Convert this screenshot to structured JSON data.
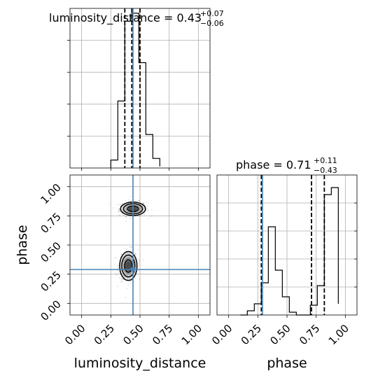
{
  "chart_data": [
    {
      "panel": "luminosity_distance-1d",
      "type": "bar",
      "title": "luminosity_distance = 0.43",
      "title_sup": "+0.07",
      "title_sub": "−0.06",
      "xlim": [
        -0.1,
        1.1
      ],
      "ylim": [
        0,
        1.0
      ],
      "bin_edges": [
        0.25,
        0.31,
        0.37,
        0.43,
        0.49,
        0.55,
        0.61,
        0.67
      ],
      "counts": [
        0.05,
        0.42,
        0.92,
        0.97,
        0.66,
        0.21,
        0.06,
        0.01
      ],
      "quantiles": [
        0.37,
        0.43,
        0.5
      ],
      "truth": 0.44,
      "xticks": [
        0.0,
        0.25,
        0.5,
        0.75,
        1.0
      ]
    },
    {
      "panel": "phase-1d",
      "type": "bar",
      "title": "phase = 0.71",
      "title_sup": "+0.11",
      "title_sub": "−0.43",
      "xlim": [
        -0.1,
        1.1
      ],
      "ylim": [
        0,
        1.0
      ],
      "bin_edges": [
        0.1,
        0.16,
        0.22,
        0.28,
        0.34,
        0.4,
        0.46,
        0.52,
        0.58,
        0.64,
        0.7,
        0.76,
        0.82,
        0.88,
        0.94
      ],
      "counts": [
        0.0,
        0.03,
        0.08,
        0.23,
        0.63,
        0.32,
        0.13,
        0.02,
        0.0,
        0.0,
        0.07,
        0.21,
        0.86,
        0.91,
        0.08
      ],
      "quantiles": [
        0.28,
        0.71,
        0.82
      ],
      "truth": 0.29,
      "xticks": [
        0.0,
        0.25,
        0.5,
        0.75,
        1.0
      ],
      "xticklabels": [
        "0.00",
        "0.25",
        "0.50",
        "0.75",
        "1.00"
      ],
      "xlabel": "phase"
    },
    {
      "panel": "luminosity_distance-phase-2d",
      "type": "scatter",
      "xlabel": "luminosity_distance",
      "ylabel": "phase",
      "xlim": [
        -0.1,
        1.1
      ],
      "ylim": [
        -0.1,
        1.1
      ],
      "xticks": [
        0.0,
        0.25,
        0.5,
        0.75,
        1.0
      ],
      "xticklabels": [
        "0.00",
        "0.25",
        "0.50",
        "0.75",
        "1.00"
      ],
      "yticks": [
        0.0,
        0.25,
        0.5,
        0.75,
        1.0
      ],
      "yticklabels": [
        "0.00",
        "0.25",
        "0.50",
        "0.75",
        "1.00"
      ],
      "truth": [
        0.44,
        0.29
      ],
      "clusters": [
        {
          "center": [
            0.44,
            0.81
          ],
          "spread": [
            0.065,
            0.035
          ]
        },
        {
          "center": [
            0.4,
            0.32
          ],
          "spread": [
            0.045,
            0.075
          ]
        }
      ]
    }
  ]
}
